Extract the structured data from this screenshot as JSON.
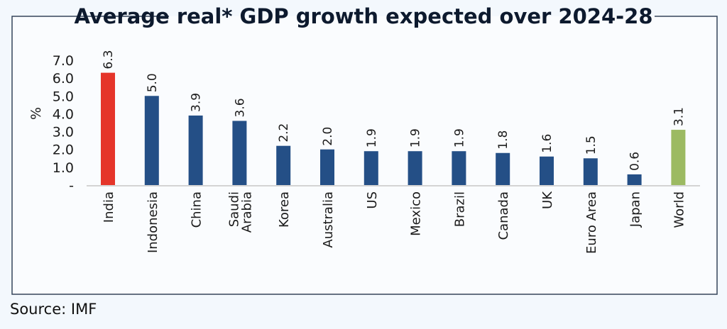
{
  "chart_data": {
    "type": "bar",
    "title": "Average real* GDP growth expected over 2024-28",
    "ylabel": "%",
    "xlabel": "",
    "ylim": [
      0,
      7
    ],
    "yticks": [
      "-",
      "1.0",
      "2.0",
      "3.0",
      "4.0",
      "5.0",
      "6.0",
      "7.0"
    ],
    "grid": false,
    "categories": [
      "India",
      "Indonesia",
      "China",
      "Saudi Arabia",
      "Korea",
      "Australia",
      "US",
      "Mexico",
      "Brazil",
      "Canada",
      "UK",
      "Euro Area",
      "Japan",
      "World"
    ],
    "values": [
      6.3,
      5.0,
      3.9,
      3.6,
      2.2,
      2.0,
      1.9,
      1.9,
      1.9,
      1.8,
      1.6,
      1.5,
      0.6,
      3.1
    ],
    "data_labels": [
      "6.3",
      "5.0",
      "3.9",
      "3.6",
      "2.2",
      "2.0",
      "1.9",
      "1.9",
      "1.9",
      "1.8",
      "1.6",
      "1.5",
      "0.6",
      "3.1"
    ],
    "colors": {
      "default": "#244f86",
      "India": "#e5352a",
      "World": "#9cba62"
    }
  },
  "source": "Source: IMF"
}
